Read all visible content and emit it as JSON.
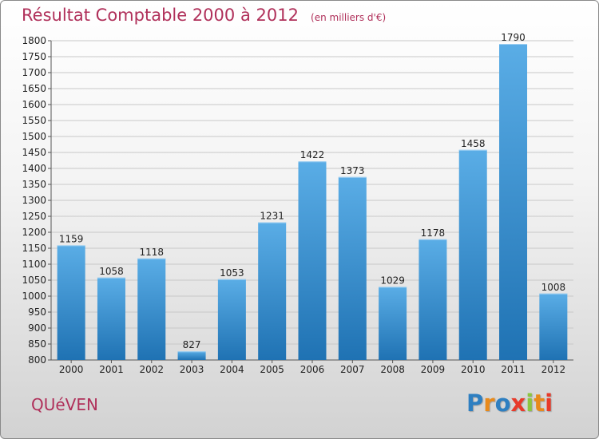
{
  "header": {
    "title": "Résultat Comptable 2000 à 2012",
    "subtitle": "(en milliers d'€)"
  },
  "footer": {
    "commune": "QUéVEN",
    "brand": "Proxiti"
  },
  "colors": {
    "title": "#b0305a",
    "bar_top": "#5aade6",
    "bar_bottom": "#1f72b3",
    "brand_letters": [
      "#2e7fc1",
      "#e88a1b",
      "#2e7fc1",
      "#e83a2a",
      "#8cc63f",
      "#e88a1b",
      "#e83a2a"
    ]
  },
  "chart_data": {
    "type": "bar",
    "categories": [
      "2000",
      "2001",
      "2002",
      "2003",
      "2004",
      "2005",
      "2006",
      "2007",
      "2008",
      "2009",
      "2010",
      "2011",
      "2012"
    ],
    "values": [
      1159,
      1058,
      1118,
      827,
      1053,
      1231,
      1422,
      1373,
      1029,
      1178,
      1458,
      1790,
      1008
    ],
    "ylim": [
      800,
      1800
    ],
    "ytick_step": 50,
    "grid": "horizontal",
    "xlabel": "",
    "ylabel": ""
  }
}
